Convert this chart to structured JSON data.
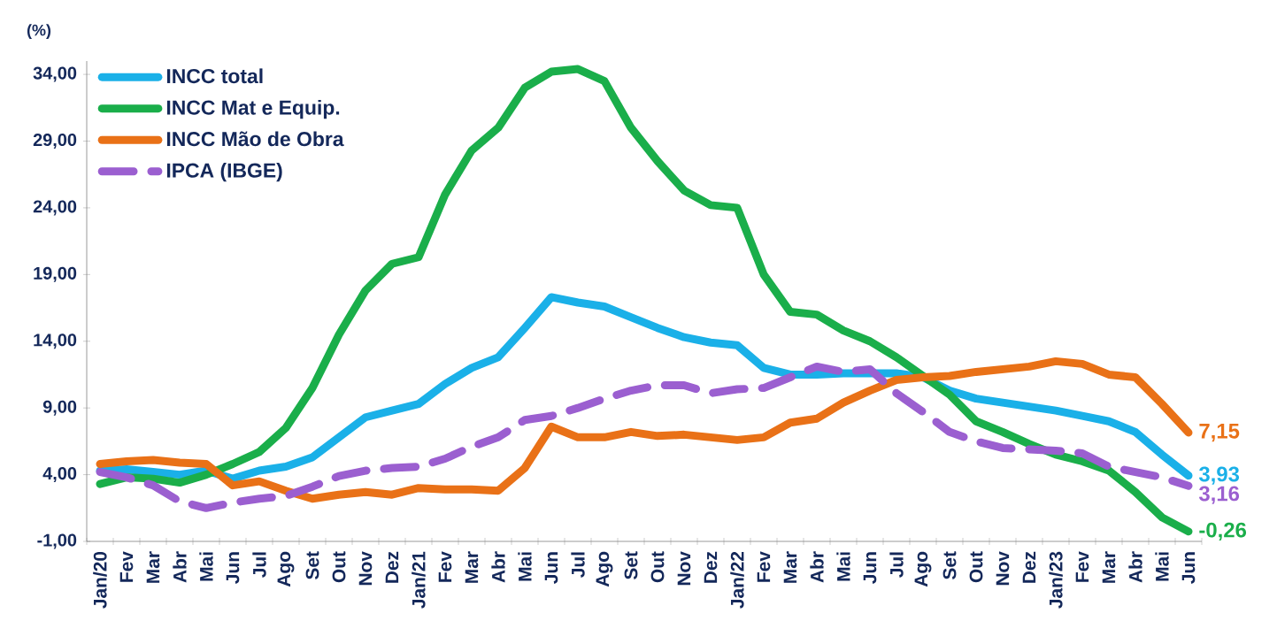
{
  "chart_data": {
    "type": "line",
    "ylabel": "(%)",
    "categories": [
      "Jan/20",
      "Fev",
      "Mar",
      "Abr",
      "Mai",
      "Jun",
      "Jul",
      "Ago",
      "Set",
      "Out",
      "Nov",
      "Dez",
      "Jan/21",
      "Fev",
      "Mar",
      "Abr",
      "Mai",
      "Jun",
      "Jul",
      "Ago",
      "Set",
      "Out",
      "Nov",
      "Dez",
      "Jan/22",
      "Fev",
      "Mar",
      "Abr",
      "Mai",
      "Jun",
      "Jul",
      "Ago",
      "Set",
      "Out",
      "Nov",
      "Dez",
      "Jan/23",
      "Fev",
      "Mar",
      "Abr",
      "Mai",
      "Jun"
    ],
    "series": [
      {
        "name": "INCC total",
        "color": "#1ab0e8",
        "line_style": "solid",
        "values": [
          4.3,
          4.4,
          4.2,
          4.0,
          4.3,
          3.7,
          4.3,
          4.6,
          5.3,
          6.8,
          8.3,
          8.8,
          9.3,
          10.8,
          12.0,
          12.8,
          15.0,
          17.3,
          16.9,
          16.6,
          15.8,
          15.0,
          14.3,
          13.9,
          13.7,
          12.0,
          11.5,
          11.5,
          11.6,
          11.6,
          11.6,
          11.3,
          10.3,
          9.7,
          9.4,
          9.1,
          8.8,
          8.4,
          8.0,
          7.2,
          5.5,
          3.93
        ],
        "value_labels": [
          null,
          null,
          null,
          null,
          null,
          null,
          null,
          null,
          null,
          null,
          null,
          null,
          null,
          null,
          null,
          null,
          null,
          null,
          null,
          null,
          null,
          null,
          null,
          null,
          null,
          null,
          null,
          null,
          null,
          null,
          null,
          null,
          null,
          null,
          null,
          null,
          null,
          null,
          null,
          null,
          null,
          "3,93"
        ]
      },
      {
        "name": "INCC Mat e Equip.",
        "color": "#1aae4a",
        "line_style": "solid",
        "values": [
          3.3,
          3.8,
          3.7,
          3.4,
          4.0,
          4.8,
          5.7,
          7.5,
          10.5,
          14.5,
          17.8,
          19.8,
          20.3,
          25.0,
          28.3,
          30.0,
          33.0,
          34.2,
          34.4,
          33.5,
          30.0,
          27.5,
          25.3,
          24.2,
          24.0,
          19.0,
          16.2,
          16.0,
          14.8,
          14.0,
          12.8,
          11.4,
          10.0,
          8.0,
          7.2,
          6.3,
          5.5,
          5.0,
          4.3,
          2.7,
          0.8,
          -0.26
        ],
        "value_labels": [
          null,
          null,
          null,
          null,
          null,
          null,
          null,
          null,
          null,
          null,
          null,
          null,
          null,
          null,
          null,
          null,
          null,
          null,
          null,
          null,
          null,
          null,
          null,
          null,
          null,
          null,
          null,
          null,
          null,
          null,
          null,
          null,
          null,
          null,
          null,
          null,
          null,
          null,
          null,
          null,
          null,
          "-0,26"
        ]
      },
      {
        "name": "INCC Mão de Obra",
        "color": "#e97117",
        "line_style": "solid",
        "values": [
          4.8,
          5.0,
          5.1,
          4.9,
          4.8,
          3.2,
          3.5,
          2.8,
          2.2,
          2.5,
          2.7,
          2.5,
          3.0,
          2.9,
          2.9,
          2.8,
          4.5,
          7.6,
          6.8,
          6.8,
          7.2,
          6.9,
          7.0,
          6.8,
          6.6,
          6.8,
          7.9,
          8.2,
          9.4,
          10.3,
          11.1,
          11.3,
          11.4,
          11.7,
          11.9,
          12.1,
          12.5,
          12.3,
          11.5,
          11.3,
          9.3,
          7.15
        ],
        "value_labels": [
          null,
          null,
          null,
          null,
          null,
          null,
          null,
          null,
          null,
          null,
          null,
          null,
          null,
          null,
          null,
          null,
          null,
          null,
          null,
          null,
          null,
          null,
          null,
          null,
          null,
          null,
          null,
          null,
          null,
          null,
          null,
          null,
          null,
          null,
          null,
          null,
          null,
          null,
          null,
          null,
          null,
          "7,15"
        ]
      },
      {
        "name": "IPCA (IBGE)",
        "color": "#9b5fd0",
        "line_style": "dashed",
        "values": [
          4.2,
          3.8,
          3.2,
          2.0,
          1.5,
          1.9,
          2.2,
          2.4,
          3.1,
          3.9,
          4.3,
          4.5,
          4.6,
          5.2,
          6.1,
          6.8,
          8.1,
          8.4,
          9.0,
          9.7,
          10.3,
          10.7,
          10.7,
          10.1,
          10.4,
          10.5,
          11.3,
          12.1,
          11.7,
          11.9,
          10.1,
          8.7,
          7.2,
          6.5,
          6.0,
          5.9,
          5.8,
          5.6,
          4.6,
          4.2,
          3.8,
          3.16
        ],
        "value_labels": [
          null,
          null,
          null,
          null,
          null,
          null,
          null,
          null,
          null,
          null,
          null,
          null,
          null,
          null,
          null,
          null,
          null,
          null,
          null,
          null,
          null,
          null,
          null,
          null,
          null,
          null,
          null,
          null,
          null,
          null,
          null,
          null,
          null,
          null,
          null,
          null,
          null,
          null,
          null,
          null,
          null,
          "3,16"
        ]
      }
    ],
    "ylim": [
      -1,
      35
    ],
    "yticks": [
      {
        "value": -1,
        "label": "-1,00"
      },
      {
        "value": 4,
        "label": "4,00"
      },
      {
        "value": 9,
        "label": "9,00"
      },
      {
        "value": 14,
        "label": "14,00"
      },
      {
        "value": 19,
        "label": "19,00"
      },
      {
        "value": 24,
        "label": "24,00"
      },
      {
        "value": 29,
        "label": "29,00"
      },
      {
        "value": 34,
        "label": "34,00"
      }
    ],
    "grid": false,
    "legend": "top left",
    "marker": "none"
  }
}
